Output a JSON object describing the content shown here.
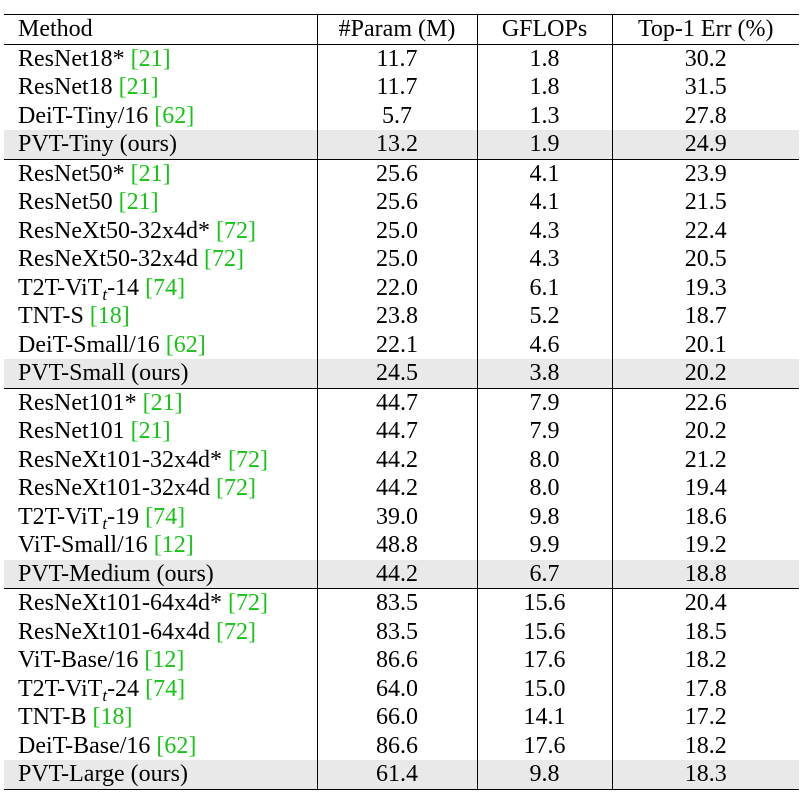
{
  "headers": {
    "method": "Method",
    "param": "#Param (M)",
    "gflops": "GFLOPs",
    "err": "Top-1 Err (%)"
  },
  "rows": [
    {
      "name": "ResNet18*",
      "sub": "",
      "suffix": "",
      "cite": "21",
      "ours": false,
      "param": "11.7",
      "gflops": "1.8",
      "err": "30.2"
    },
    {
      "name": "ResNet18",
      "sub": "",
      "suffix": "",
      "cite": "21",
      "ours": false,
      "param": "11.7",
      "gflops": "1.8",
      "err": "31.5"
    },
    {
      "name": "DeiT-Tiny/16",
      "sub": "",
      "suffix": "",
      "cite": "62",
      "ours": false,
      "param": "5.7",
      "gflops": "1.3",
      "err": "27.8"
    },
    {
      "name": "PVT-Tiny (ours)",
      "sub": "",
      "suffix": "",
      "cite": "",
      "ours": true,
      "param": "13.2",
      "gflops": "1.9",
      "err": "24.9"
    },
    {
      "name": "ResNet50*",
      "sub": "",
      "suffix": "",
      "cite": "21",
      "ours": false,
      "param": "25.6",
      "gflops": "4.1",
      "err": "23.9"
    },
    {
      "name": "ResNet50",
      "sub": "",
      "suffix": "",
      "cite": "21",
      "ours": false,
      "param": "25.6",
      "gflops": "4.1",
      "err": "21.5"
    },
    {
      "name": "ResNeXt50-32x4d*",
      "sub": "",
      "suffix": "",
      "cite": "72",
      "ours": false,
      "param": "25.0",
      "gflops": "4.3",
      "err": "22.4"
    },
    {
      "name": "ResNeXt50-32x4d",
      "sub": "",
      "suffix": "",
      "cite": "72",
      "ours": false,
      "param": "25.0",
      "gflops": "4.3",
      "err": "20.5"
    },
    {
      "name": "T2T-ViT",
      "sub": "t",
      "suffix": "-14",
      "cite": "74",
      "ours": false,
      "param": "22.0",
      "gflops": "6.1",
      "err": "19.3"
    },
    {
      "name": "TNT-S",
      "sub": "",
      "suffix": "",
      "cite": "18",
      "ours": false,
      "param": "23.8",
      "gflops": "5.2",
      "err": "18.7"
    },
    {
      "name": "DeiT-Small/16",
      "sub": "",
      "suffix": "",
      "cite": "62",
      "ours": false,
      "param": "22.1",
      "gflops": "4.6",
      "err": "20.1"
    },
    {
      "name": "PVT-Small (ours)",
      "sub": "",
      "suffix": "",
      "cite": "",
      "ours": true,
      "param": "24.5",
      "gflops": "3.8",
      "err": "20.2"
    },
    {
      "name": "ResNet101*",
      "sub": "",
      "suffix": "",
      "cite": "21",
      "ours": false,
      "param": "44.7",
      "gflops": "7.9",
      "err": "22.6"
    },
    {
      "name": "ResNet101",
      "sub": "",
      "suffix": "",
      "cite": "21",
      "ours": false,
      "param": "44.7",
      "gflops": "7.9",
      "err": "20.2"
    },
    {
      "name": "ResNeXt101-32x4d*",
      "sub": "",
      "suffix": "",
      "cite": "72",
      "ours": false,
      "param": "44.2",
      "gflops": "8.0",
      "err": "21.2"
    },
    {
      "name": "ResNeXt101-32x4d",
      "sub": "",
      "suffix": "",
      "cite": "72",
      "ours": false,
      "param": "44.2",
      "gflops": "8.0",
      "err": "19.4"
    },
    {
      "name": "T2T-ViT",
      "sub": "t",
      "suffix": "-19",
      "cite": "74",
      "ours": false,
      "param": "39.0",
      "gflops": "9.8",
      "err": "18.6"
    },
    {
      "name": "ViT-Small/16",
      "sub": "",
      "suffix": "",
      "cite": "12",
      "ours": false,
      "param": "48.8",
      "gflops": "9.9",
      "err": "19.2"
    },
    {
      "name": "PVT-Medium (ours)",
      "sub": "",
      "suffix": "",
      "cite": "",
      "ours": true,
      "param": "44.2",
      "gflops": "6.7",
      "err": "18.8"
    },
    {
      "name": "ResNeXt101-64x4d*",
      "sub": "",
      "suffix": "",
      "cite": "72",
      "ours": false,
      "param": "83.5",
      "gflops": "15.6",
      "err": "20.4"
    },
    {
      "name": "ResNeXt101-64x4d",
      "sub": "",
      "suffix": "",
      "cite": "72",
      "ours": false,
      "param": "83.5",
      "gflops": "15.6",
      "err": "18.5"
    },
    {
      "name": "ViT-Base/16",
      "sub": "",
      "suffix": "",
      "cite": "12",
      "ours": false,
      "param": "86.6",
      "gflops": "17.6",
      "err": "18.2"
    },
    {
      "name": "T2T-ViT",
      "sub": "t",
      "suffix": "-24",
      "cite": "74",
      "ours": false,
      "param": "64.0",
      "gflops": "15.0",
      "err": "17.8"
    },
    {
      "name": "TNT-B",
      "sub": "",
      "suffix": "",
      "cite": "18",
      "ours": false,
      "param": "66.0",
      "gflops": "14.1",
      "err": "17.2"
    },
    {
      "name": "DeiT-Base/16",
      "sub": "",
      "suffix": "",
      "cite": "62",
      "ours": false,
      "param": "86.6",
      "gflops": "17.6",
      "err": "18.2"
    },
    {
      "name": "PVT-Large (ours)",
      "sub": "",
      "suffix": "",
      "cite": "",
      "ours": true,
      "param": "61.4",
      "gflops": "9.8",
      "err": "18.3"
    }
  ],
  "colors": {
    "citation": "#16c416",
    "ours_row_background": "#e9e9e9",
    "rule": "#000000"
  }
}
